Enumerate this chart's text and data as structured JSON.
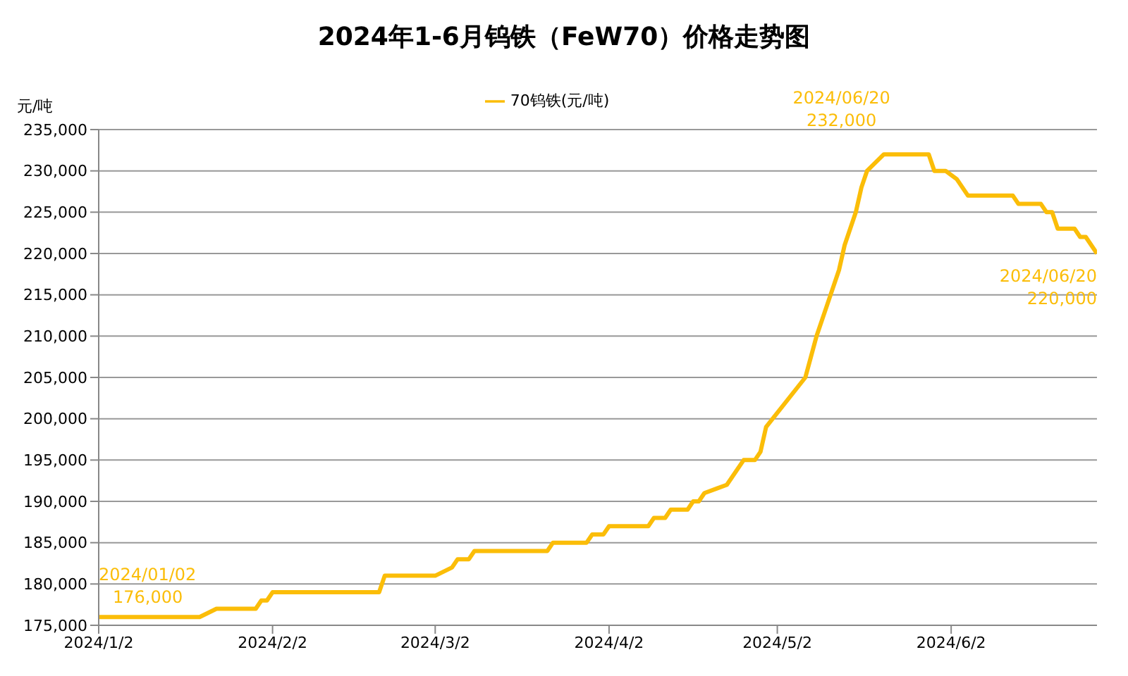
{
  "chart_data": {
    "type": "line",
    "title": "2024年1-6月钨铁（FeW70）价格走势图",
    "ylabel": "元/吨",
    "x": [
      "2024-01-02",
      "2024-01-20",
      "2024-01-23",
      "2024-01-30",
      "2024-01-31",
      "2024-02-01",
      "2024-02-02",
      "2024-02-21",
      "2024-02-22",
      "2024-03-02",
      "2024-03-05",
      "2024-03-06",
      "2024-03-08",
      "2024-03-09",
      "2024-03-22",
      "2024-03-23",
      "2024-03-29",
      "2024-03-30",
      "2024-04-01",
      "2024-04-02",
      "2024-04-09",
      "2024-04-10",
      "2024-04-12",
      "2024-04-13",
      "2024-04-16",
      "2024-04-17",
      "2024-04-18",
      "2024-04-19",
      "2024-04-23",
      "2024-04-26",
      "2024-04-28",
      "2024-04-29",
      "2024-04-30",
      "2024-05-07",
      "2024-05-09",
      "2024-05-11",
      "2024-05-13",
      "2024-05-14",
      "2024-05-16",
      "2024-05-17",
      "2024-05-18",
      "2024-05-21",
      "2024-05-29",
      "2024-05-30",
      "2024-06-01",
      "2024-06-03",
      "2024-06-05",
      "2024-06-13",
      "2024-06-14",
      "2024-06-18",
      "2024-06-19",
      "2024-06-20",
      "2024-06-21",
      "2024-06-24",
      "2024-06-25",
      "2024-06-26",
      "2024-06-28"
    ],
    "series": [
      {
        "name": "70钨铁(元/吨)",
        "color": "#fbbd08",
        "values": [
          176000,
          176000,
          177000,
          177000,
          178000,
          178000,
          179000,
          179000,
          181000,
          181000,
          182000,
          183000,
          183000,
          184000,
          184000,
          185000,
          185000,
          186000,
          186000,
          187000,
          187000,
          188000,
          188000,
          189000,
          189000,
          190000,
          190000,
          191000,
          192000,
          195000,
          195000,
          196000,
          199000,
          205000,
          210000,
          214000,
          218000,
          221000,
          225000,
          228000,
          230000,
          232000,
          232000,
          230000,
          230000,
          229000,
          227000,
          227000,
          226000,
          226000,
          225000,
          225000,
          223000,
          223000,
          222000,
          222000,
          220000
        ]
      }
    ],
    "xlim": [
      "2024-01-02",
      "2024-06-28"
    ],
    "xticks": [
      {
        "value": "2024-01-02",
        "label": "2024/1/2"
      },
      {
        "value": "2024-02-02",
        "label": "2024/2/2"
      },
      {
        "value": "2024-03-02",
        "label": "2024/3/2"
      },
      {
        "value": "2024-04-02",
        "label": "2024/4/2"
      },
      {
        "value": "2024-05-02",
        "label": "2024/5/2"
      },
      {
        "value": "2024-06-02",
        "label": "2024/6/2"
      }
    ],
    "ylim": [
      175000,
      235000
    ],
    "yticks": [
      {
        "value": 175000,
        "label": "175,000"
      },
      {
        "value": 180000,
        "label": "180,000"
      },
      {
        "value": 185000,
        "label": "185,000"
      },
      {
        "value": 190000,
        "label": "190,000"
      },
      {
        "value": 195000,
        "label": "195,000"
      },
      {
        "value": 200000,
        "label": "200,000"
      },
      {
        "value": 205000,
        "label": "205,000"
      },
      {
        "value": 210000,
        "label": "210,000"
      },
      {
        "value": 215000,
        "label": "215,000"
      },
      {
        "value": 220000,
        "label": "220,000"
      },
      {
        "value": 225000,
        "label": "225,000"
      },
      {
        "value": 230000,
        "label": "230,000"
      },
      {
        "value": 235000,
        "label": "235,000"
      }
    ],
    "annotations": [
      {
        "text": "2024/01/02\n176,000",
        "x": "2024-01-02",
        "y": 176000
      },
      {
        "text": "2024/06/20\n232,000",
        "x": "2024-05-21",
        "y": 232000
      },
      {
        "text": "2024/06/20\n220,000",
        "x": "2024-06-28",
        "y": 220000
      }
    ],
    "grid": "y",
    "legend": "top",
    "marker": "none",
    "line_style": "solid"
  }
}
